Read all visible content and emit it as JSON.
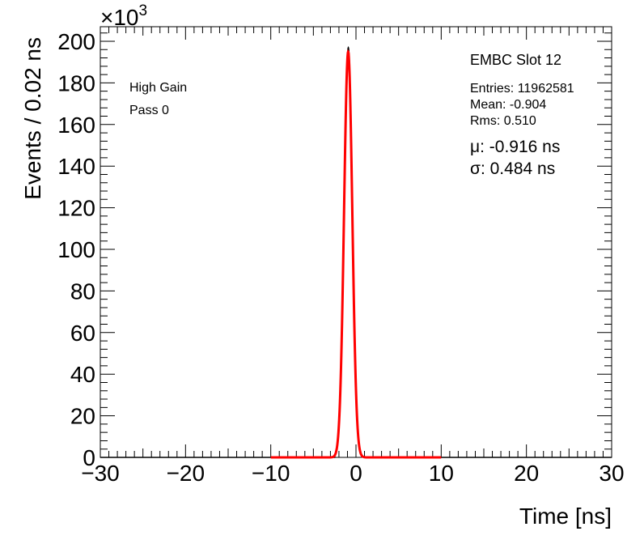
{
  "chart_data": {
    "type": "histogram",
    "xlabel": "Time [ns]",
    "ylabel": "Events / 0.02 ns",
    "y_multiplier_label": "×10",
    "y_multiplier_exponent": "3",
    "xlim": [
      -30,
      30
    ],
    "ylim": [
      0,
      207
    ],
    "x_ticks": [
      -30,
      -20,
      -10,
      0,
      10,
      20,
      30
    ],
    "x_tick_labels": [
      "−30",
      "−20",
      "−10",
      "0",
      "10",
      "20",
      "30"
    ],
    "y_ticks": [
      0,
      20,
      40,
      60,
      80,
      100,
      120,
      140,
      160,
      180,
      200
    ],
    "y_tick_labels": [
      "0",
      "20",
      "40",
      "60",
      "80",
      "100",
      "120",
      "140",
      "160",
      "180",
      "200"
    ],
    "units": "×10^3 events",
    "series": [
      {
        "kind": "histogram",
        "color": "#000000",
        "mean": -0.904,
        "rms": 0.51,
        "peak_x": -0.9,
        "peak_y": 197,
        "range": [
          -2.5,
          1.0
        ]
      },
      {
        "kind": "gaussian_fit",
        "color": "#ff0000",
        "mu": -0.916,
        "sigma": 0.484,
        "amplitude": 195,
        "range": [
          -10,
          10
        ]
      }
    ],
    "annotations": {
      "gain": "High Gain",
      "pass": "Pass 0",
      "module": "EMBC Slot 12",
      "entries": "Entries: 11962581",
      "mean": "Mean: -0.904",
      "rms": "Rms: 0.510",
      "mu": "μ: -0.916 ns",
      "sigma": "σ: 0.484 ns"
    },
    "grid": false
  }
}
